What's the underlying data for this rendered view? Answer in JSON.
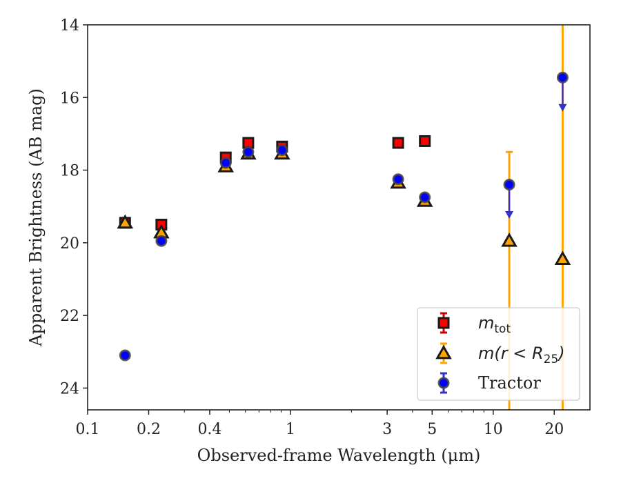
{
  "chart_data": {
    "type": "scatter",
    "xlabel": "Observed-frame Wavelength (μm)",
    "ylabel": "Apparent Brightness (AB mag)",
    "xscale": "log",
    "xlim": [
      0.1,
      30
    ],
    "ylim": [
      24.6,
      14
    ],
    "y_inverted": true,
    "xticks": [
      {
        "value": 0.1,
        "label": "0.1"
      },
      {
        "value": 0.2,
        "label": "0.2"
      },
      {
        "value": 0.4,
        "label": "0.4"
      },
      {
        "value": 1,
        "label": "1"
      },
      {
        "value": 3,
        "label": "3"
      },
      {
        "value": 5,
        "label": "5"
      },
      {
        "value": 10,
        "label": "10"
      },
      {
        "value": 20,
        "label": "20"
      }
    ],
    "yticks": [
      {
        "value": 14,
        "label": "14"
      },
      {
        "value": 16,
        "label": "16"
      },
      {
        "value": 18,
        "label": "18"
      },
      {
        "value": 20,
        "label": "20"
      },
      {
        "value": 22,
        "label": "22"
      },
      {
        "value": 24,
        "label": "24"
      }
    ],
    "grid": false,
    "legend_position": "lower-right",
    "series": [
      {
        "name": "m_tot",
        "legend_main": "m",
        "legend_sub": "tot",
        "marker": "square",
        "color": "#ff0000",
        "edge_color": "#1a1a1a",
        "error_color": "#cc0000",
        "points": [
          {
            "x": 0.153,
            "y": 19.45
          },
          {
            "x": 0.231,
            "y": 19.5
          },
          {
            "x": 0.48,
            "y": 17.65
          },
          {
            "x": 0.62,
            "y": 17.25
          },
          {
            "x": 0.91,
            "y": 17.35
          },
          {
            "x": 3.4,
            "y": 17.25
          },
          {
            "x": 4.6,
            "y": 17.2
          }
        ]
      },
      {
        "name": "m(r < R25)",
        "legend_main": "m(r < R",
        "legend_sub": "25",
        "legend_tail": ")",
        "marker": "triangle",
        "color": "#ffa500",
        "edge_color": "#1a1a1a",
        "error_color": "#ffa500",
        "points": [
          {
            "x": 0.153,
            "y": 19.45
          },
          {
            "x": 0.231,
            "y": 19.72
          },
          {
            "x": 0.48,
            "y": 17.9
          },
          {
            "x": 0.62,
            "y": 17.55
          },
          {
            "x": 0.91,
            "y": 17.55
          },
          {
            "x": 3.4,
            "y": 18.35
          },
          {
            "x": 4.6,
            "y": 18.85
          },
          {
            "x": 12,
            "y": 19.95,
            "err_low": 17.5,
            "err_high": 24.6
          },
          {
            "x": 22,
            "y": 20.45,
            "err_low": 14,
            "err_high": 24.6
          }
        ]
      },
      {
        "name": "Tractor",
        "legend_main": "Tractor",
        "marker": "circle",
        "color": "#0000ff",
        "edge_color": "#444444",
        "error_color": "#3333cc",
        "points": [
          {
            "x": 0.153,
            "y": 23.1
          },
          {
            "x": 0.231,
            "y": 19.95
          },
          {
            "x": 0.48,
            "y": 17.8
          },
          {
            "x": 0.62,
            "y": 17.5
          },
          {
            "x": 0.91,
            "y": 17.45
          },
          {
            "x": 3.4,
            "y": 18.25
          },
          {
            "x": 4.6,
            "y": 18.75
          },
          {
            "x": 12,
            "y": 18.4,
            "upper_limit": true,
            "arrow_to": 19.3
          },
          {
            "x": 22,
            "y": 15.45,
            "upper_limit": true,
            "arrow_to": 16.35
          }
        ]
      }
    ]
  }
}
